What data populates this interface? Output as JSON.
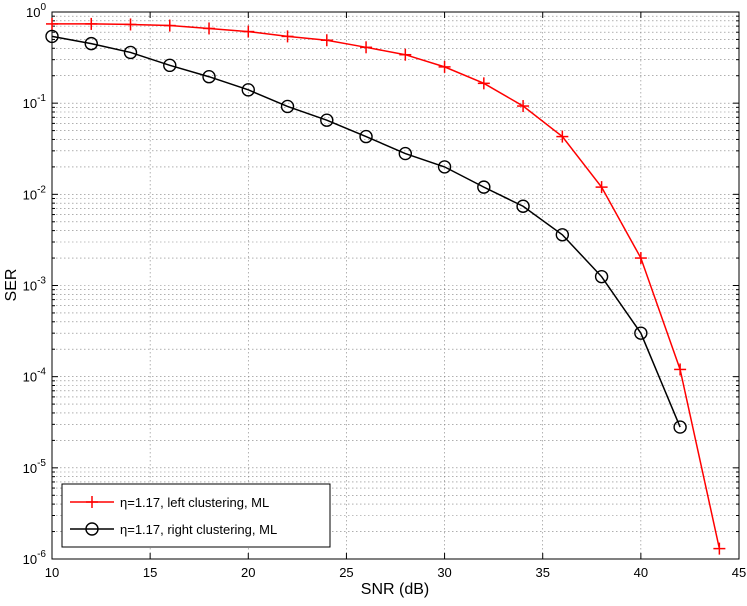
{
  "chart_data": {
    "type": "line",
    "xlabel": "SNR (dB)",
    "ylabel": "SER",
    "xlim": [
      10,
      45
    ],
    "ylim": [
      1e-06,
      1
    ],
    "yscale": "log",
    "grid": true,
    "legend_position": "bottom-left",
    "x_ticks": [
      10,
      15,
      20,
      25,
      30,
      35,
      40,
      45
    ],
    "y_ticks": [
      {
        "value": 1,
        "base": "10",
        "exp": "0"
      },
      {
        "value": 0.1,
        "base": "10",
        "exp": "-1"
      },
      {
        "value": 0.01,
        "base": "10",
        "exp": "-2"
      },
      {
        "value": 0.001,
        "base": "10",
        "exp": "-3"
      },
      {
        "value": 0.0001,
        "base": "10",
        "exp": "-4"
      },
      {
        "value": 1e-05,
        "base": "10",
        "exp": "-5"
      },
      {
        "value": 1e-06,
        "base": "10",
        "exp": "-6"
      }
    ],
    "series": [
      {
        "name": "η=1.17, left clustering, ML",
        "color": "#ff0000",
        "marker": "plus",
        "x": [
          10,
          12,
          14,
          16,
          18,
          20,
          22,
          24,
          26,
          28,
          30,
          32,
          34,
          36,
          38,
          40,
          42,
          44
        ],
        "y": [
          0.74,
          0.74,
          0.73,
          0.71,
          0.66,
          0.61,
          0.54,
          0.49,
          0.41,
          0.34,
          0.25,
          0.165,
          0.093,
          0.043,
          0.012,
          0.002,
          0.00012,
          1.3e-06
        ]
      },
      {
        "name": "η=1.17, right clustering, ML",
        "color": "#000000",
        "marker": "circle",
        "x": [
          10,
          12,
          14,
          16,
          18,
          20,
          22,
          24,
          26,
          28,
          30,
          32,
          34,
          36,
          38,
          40,
          42
        ],
        "y": [
          0.54,
          0.45,
          0.36,
          0.26,
          0.195,
          0.14,
          0.092,
          0.065,
          0.043,
          0.028,
          0.02,
          0.012,
          0.0074,
          0.0036,
          0.00125,
          0.0003,
          2.8e-05
        ]
      }
    ]
  }
}
